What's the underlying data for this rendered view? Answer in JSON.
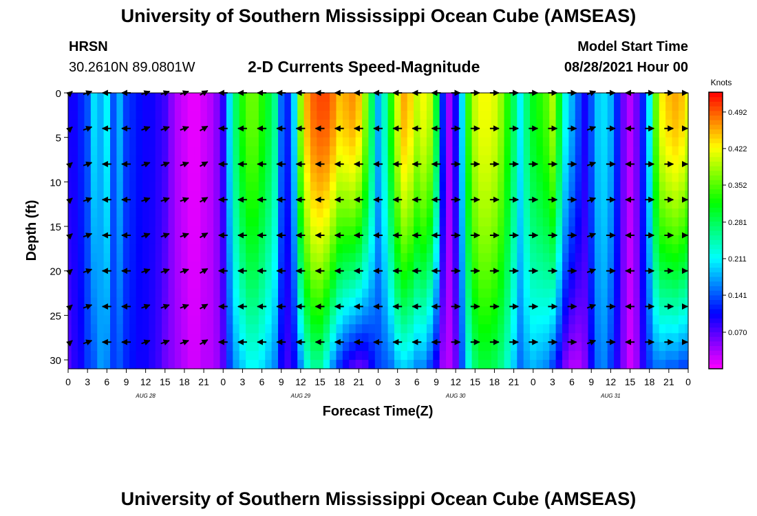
{
  "header": {
    "title": "University of Southern Mississippi Ocean Cube (AMSEAS)",
    "footer_title": "University of Southern Mississippi Ocean Cube (AMSEAS)",
    "station_id": "HRSN",
    "station_coords": "30.2610N  89.0801W",
    "plot_title": "2-D Currents Speed-Magnitude",
    "model_start_label": "Model Start Time",
    "model_start_value": "08/28/2021 Hour 00"
  },
  "chart_data": {
    "type": "heatmap",
    "title": "2-D Currents Speed-Magnitude",
    "xlabel": "Forecast Time(Z)",
    "ylabel": "Depth (ft)",
    "xlim": [
      0,
      96
    ],
    "ylim": [
      31,
      0
    ],
    "y_ticks": [
      0,
      5,
      10,
      15,
      20,
      25,
      30
    ],
    "x_tick_labels": [
      "0",
      "3",
      "6",
      "9",
      "12",
      "15",
      "18",
      "21",
      "0",
      "3",
      "6",
      "9",
      "12",
      "15",
      "18",
      "21",
      "0",
      "3",
      "6",
      "9",
      "12",
      "15",
      "18",
      "21",
      "0",
      "3",
      "6",
      "9",
      "12",
      "15",
      "18",
      "21",
      "0"
    ],
    "day_labels": [
      {
        "hour": 12,
        "label": "AUG 28"
      },
      {
        "hour": 36,
        "label": "AUG 29"
      },
      {
        "hour": 60,
        "label": "AUG 30"
      },
      {
        "hour": 84,
        "label": "AUG 31"
      }
    ],
    "colorbar": {
      "unit": "Knots",
      "min": 0.0,
      "max": 0.53,
      "ticks": [
        "0.070",
        "0.141",
        "0.211",
        "0.281",
        "0.352",
        "0.422",
        "0.492"
      ],
      "tick_values": [
        0.07,
        0.141,
        0.211,
        0.281,
        0.352,
        0.422,
        0.492
      ]
    },
    "speed_profile_hours": [
      0,
      1,
      2,
      3,
      4,
      5,
      6,
      7,
      8,
      9,
      10,
      11,
      12,
      13,
      14,
      15,
      16,
      17,
      18,
      19,
      20,
      21,
      22,
      23,
      24,
      25,
      26,
      27,
      28,
      29,
      30,
      31,
      32,
      33,
      34,
      35,
      36,
      37,
      38,
      39,
      40,
      41,
      42,
      43,
      44,
      45,
      46,
      47,
      48,
      49,
      50,
      51,
      52,
      53,
      54,
      55,
      56,
      57,
      58,
      59,
      60,
      61,
      62,
      63,
      64,
      65,
      66,
      67,
      68,
      69,
      70,
      71,
      72,
      73,
      74,
      75,
      76,
      77,
      78,
      79,
      80,
      81,
      82,
      83,
      84,
      85,
      86,
      87,
      88,
      89,
      90,
      91,
      92,
      93,
      94,
      95,
      96
    ],
    "speed_surface": [
      0.1,
      0.1,
      0.12,
      0.14,
      0.2,
      0.18,
      0.21,
      0.14,
      0.18,
      0.13,
      0.12,
      0.11,
      0.1,
      0.1,
      0.09,
      0.08,
      0.05,
      0.03,
      0.02,
      0.01,
      0.01,
      0.02,
      0.03,
      0.05,
      0.09,
      0.2,
      0.28,
      0.33,
      0.36,
      0.36,
      0.33,
      0.3,
      0.26,
      0.15,
      0.12,
      0.2,
      0.38,
      0.46,
      0.49,
      0.5,
      0.5,
      0.48,
      0.45,
      0.46,
      0.47,
      0.45,
      0.38,
      0.28,
      0.18,
      0.24,
      0.33,
      0.41,
      0.46,
      0.44,
      0.4,
      0.42,
      0.4,
      0.3,
      0.12,
      0.04,
      0.1,
      0.2,
      0.34,
      0.4,
      0.42,
      0.42,
      0.41,
      0.38,
      0.33,
      0.28,
      0.21,
      0.27,
      0.31,
      0.33,
      0.35,
      0.39,
      0.31,
      0.22,
      0.18,
      0.14,
      0.1,
      0.14,
      0.19,
      0.2,
      0.18,
      0.12,
      0.06,
      0.03,
      0.06,
      0.12,
      0.21,
      0.36,
      0.43,
      0.45,
      0.46,
      0.45,
      0.42
    ],
    "speed_bottom": [
      0.07,
      0.09,
      0.1,
      0.13,
      0.14,
      0.17,
      0.16,
      0.13,
      0.14,
      0.12,
      0.11,
      0.1,
      0.1,
      0.09,
      0.08,
      0.06,
      0.05,
      0.04,
      0.03,
      0.02,
      0.02,
      0.03,
      0.03,
      0.04,
      0.07,
      0.13,
      0.17,
      0.19,
      0.21,
      0.21,
      0.2,
      0.18,
      0.16,
      0.1,
      0.08,
      0.1,
      0.16,
      0.22,
      0.25,
      0.25,
      0.21,
      0.16,
      0.12,
      0.09,
      0.07,
      0.06,
      0.07,
      0.1,
      0.13,
      0.14,
      0.15,
      0.18,
      0.19,
      0.18,
      0.16,
      0.16,
      0.13,
      0.09,
      0.04,
      0.03,
      0.06,
      0.14,
      0.22,
      0.27,
      0.29,
      0.29,
      0.28,
      0.26,
      0.23,
      0.19,
      0.15,
      0.17,
      0.18,
      0.17,
      0.16,
      0.13,
      0.09,
      0.05,
      0.03,
      0.03,
      0.05,
      0.1,
      0.15,
      0.16,
      0.13,
      0.09,
      0.05,
      0.02,
      0.04,
      0.09,
      0.13,
      0.15,
      0.15,
      0.14,
      0.14,
      0.13,
      0.13
    ],
    "arrow_depths_ft": [
      0,
      4,
      8,
      12,
      16,
      20,
      24,
      28
    ],
    "arrow_hours": [
      0,
      3,
      6,
      9,
      12,
      15,
      18,
      21,
      24,
      27,
      30,
      33,
      36,
      39,
      42,
      45,
      48,
      51,
      54,
      57,
      60,
      63,
      66,
      69,
      72,
      75,
      78,
      81,
      84,
      87,
      90,
      93,
      96
    ],
    "arrow_dir_deg": [
      20,
      20,
      180,
      180,
      20,
      20,
      20,
      30,
      180,
      180,
      180,
      180,
      180,
      180,
      180,
      180,
      180,
      180,
      180,
      180,
      0,
      0,
      0,
      0,
      0,
      0,
      0,
      20,
      0,
      180,
      0,
      0,
      0
    ],
    "arrow_dir_note": "degrees counter-clockwise from east (0 = flow to the right, 180 = flow to the left)"
  }
}
